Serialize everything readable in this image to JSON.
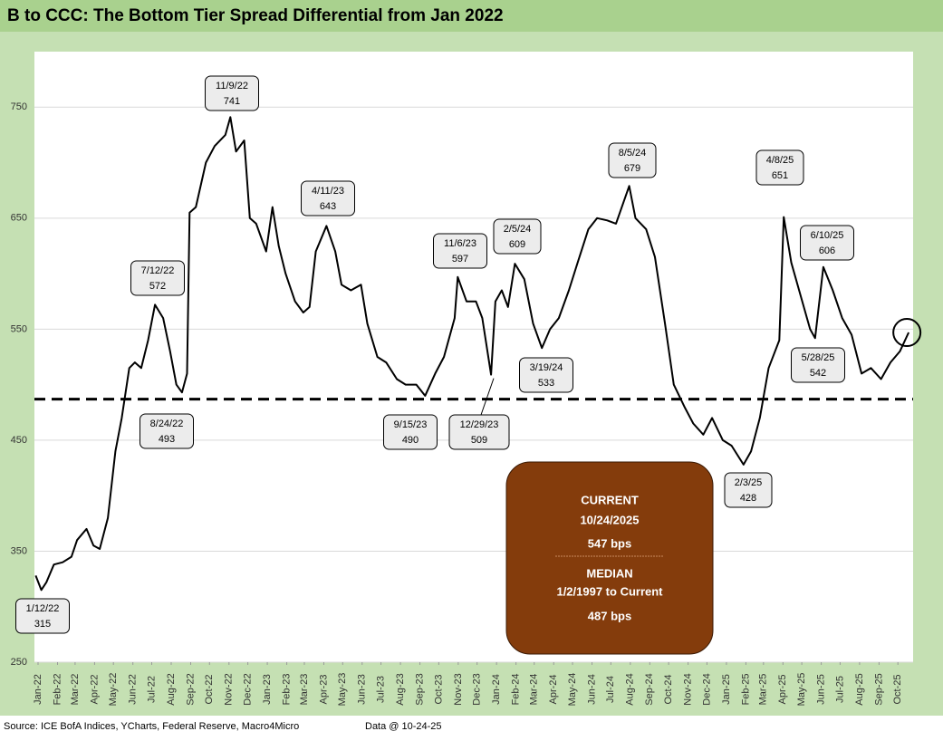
{
  "chart_data": {
    "type": "line",
    "title": "B to CCC: The Bottom Tier Spread Differential from Jan 2022",
    "source": "Source: ICE BofA Indices, YCharts, Federal Reserve, Macro4Micro",
    "data_note": "Data @ 10-24-25",
    "color": "#000000",
    "grid": true,
    "ylim": [
      250,
      800
    ],
    "yticks": [
      250,
      350,
      450,
      550,
      650,
      750
    ],
    "xlim": [
      "2022-01-01",
      "2025-10-31"
    ],
    "xticks": [
      {
        "value": "2022-01-01",
        "label": "Jan-22"
      },
      {
        "value": "2022-02-01",
        "label": "Feb-22"
      },
      {
        "value": "2022-03-01",
        "label": "Mar-22"
      },
      {
        "value": "2022-04-01",
        "label": "Apr-22"
      },
      {
        "value": "2022-05-01",
        "label": "May-22"
      },
      {
        "value": "2022-06-01",
        "label": "Jun-22"
      },
      {
        "value": "2022-07-01",
        "label": "Jul-22"
      },
      {
        "value": "2022-08-01",
        "label": "Aug-22"
      },
      {
        "value": "2022-09-01",
        "label": "Sep-22"
      },
      {
        "value": "2022-10-01",
        "label": "Oct-22"
      },
      {
        "value": "2022-11-01",
        "label": "Nov-22"
      },
      {
        "value": "2022-12-01",
        "label": "Dec-22"
      },
      {
        "value": "2023-01-01",
        "label": "Jan-23"
      },
      {
        "value": "2023-02-01",
        "label": "Feb-23"
      },
      {
        "value": "2023-03-01",
        "label": "Mar-23"
      },
      {
        "value": "2023-04-01",
        "label": "Apr-23"
      },
      {
        "value": "2023-05-01",
        "label": "May-23"
      },
      {
        "value": "2023-06-01",
        "label": "Jun-23"
      },
      {
        "value": "2023-07-01",
        "label": "Jul-23"
      },
      {
        "value": "2023-08-01",
        "label": "Aug-23"
      },
      {
        "value": "2023-09-01",
        "label": "Sep-23"
      },
      {
        "value": "2023-10-01",
        "label": "Oct-23"
      },
      {
        "value": "2023-11-01",
        "label": "Nov-23"
      },
      {
        "value": "2023-12-01",
        "label": "Dec-23"
      },
      {
        "value": "2024-01-01",
        "label": "Jan-24"
      },
      {
        "value": "2024-02-01",
        "label": "Feb-24"
      },
      {
        "value": "2024-03-01",
        "label": "Mar-24"
      },
      {
        "value": "2024-04-01",
        "label": "Apr-24"
      },
      {
        "value": "2024-05-01",
        "label": "May-24"
      },
      {
        "value": "2024-06-01",
        "label": "Jun-24"
      },
      {
        "value": "2024-07-01",
        "label": "Jul-24"
      },
      {
        "value": "2024-08-01",
        "label": "Aug-24"
      },
      {
        "value": "2024-09-01",
        "label": "Sep-24"
      },
      {
        "value": "2024-10-01",
        "label": "Oct-24"
      },
      {
        "value": "2024-11-01",
        "label": "Nov-24"
      },
      {
        "value": "2024-12-01",
        "label": "Dec-24"
      },
      {
        "value": "2025-01-01",
        "label": "Jan-25"
      },
      {
        "value": "2025-02-01",
        "label": "Feb-25"
      },
      {
        "value": "2025-03-01",
        "label": "Mar-25"
      },
      {
        "value": "2025-04-01",
        "label": "Apr-25"
      },
      {
        "value": "2025-05-01",
        "label": "May-25"
      },
      {
        "value": "2025-06-01",
        "label": "Jun-25"
      },
      {
        "value": "2025-07-01",
        "label": "Jul-25"
      },
      {
        "value": "2025-08-01",
        "label": "Aug-25"
      },
      {
        "value": "2025-09-01",
        "label": "Sep-25"
      },
      {
        "value": "2025-10-01",
        "label": "Oct-25"
      }
    ],
    "x": [
      "2022-01-03",
      "2022-01-12",
      "2022-01-20",
      "2022-02-01",
      "2022-02-15",
      "2022-03-01",
      "2022-03-10",
      "2022-03-25",
      "2022-04-05",
      "2022-04-15",
      "2022-04-28",
      "2022-05-10",
      "2022-05-20",
      "2022-06-01",
      "2022-06-10",
      "2022-06-20",
      "2022-07-01",
      "2022-07-12",
      "2022-07-25",
      "2022-08-05",
      "2022-08-15",
      "2022-08-24",
      "2022-09-01",
      "2022-09-05",
      "2022-09-15",
      "2022-10-01",
      "2022-10-15",
      "2022-11-01",
      "2022-11-09",
      "2022-11-18",
      "2022-12-01",
      "2022-12-10",
      "2022-12-20",
      "2023-01-05",
      "2023-01-15",
      "2023-01-25",
      "2023-02-05",
      "2023-02-20",
      "2023-03-05",
      "2023-03-15",
      "2023-03-25",
      "2023-04-11",
      "2023-04-25",
      "2023-05-05",
      "2023-05-20",
      "2023-06-05",
      "2023-06-15",
      "2023-07-01",
      "2023-07-15",
      "2023-08-01",
      "2023-08-15",
      "2023-09-01",
      "2023-09-15",
      "2023-10-01",
      "2023-10-15",
      "2023-11-01",
      "2023-11-06",
      "2023-11-20",
      "2023-12-05",
      "2023-12-15",
      "2023-12-29",
      "2024-01-05",
      "2024-01-15",
      "2024-01-25",
      "2024-02-05",
      "2024-02-20",
      "2024-03-05",
      "2024-03-19",
      "2024-04-01",
      "2024-04-15",
      "2024-05-01",
      "2024-05-15",
      "2024-06-01",
      "2024-06-15",
      "2024-07-01",
      "2024-07-15",
      "2024-08-05",
      "2024-08-15",
      "2024-09-01",
      "2024-09-15",
      "2024-10-01",
      "2024-10-15",
      "2024-11-01",
      "2024-11-15",
      "2024-12-01",
      "2024-12-15",
      "2025-01-01",
      "2025-01-15",
      "2025-02-03",
      "2025-02-15",
      "2025-03-01",
      "2025-03-15",
      "2025-04-01",
      "2025-04-08",
      "2025-04-20",
      "2025-05-05",
      "2025-05-20",
      "2025-05-28",
      "2025-06-10",
      "2025-06-25",
      "2025-07-10",
      "2025-07-25",
      "2025-08-10",
      "2025-08-25",
      "2025-09-10",
      "2025-09-25",
      "2025-10-10",
      "2025-10-24"
    ],
    "series": [
      {
        "color": "#000000",
        "values": [
          328,
          315,
          322,
          338,
          340,
          345,
          360,
          370,
          355,
          352,
          380,
          440,
          470,
          515,
          520,
          515,
          540,
          572,
          560,
          530,
          500,
          493,
          510,
          655,
          660,
          700,
          715,
          725,
          741,
          710,
          720,
          650,
          645,
          620,
          660,
          625,
          600,
          575,
          565,
          570,
          620,
          643,
          620,
          590,
          585,
          590,
          555,
          525,
          520,
          505,
          500,
          500,
          490,
          510,
          525,
          560,
          597,
          575,
          575,
          560,
          509,
          575,
          585,
          570,
          609,
          595,
          555,
          533,
          550,
          560,
          585,
          610,
          640,
          650,
          648,
          645,
          679,
          650,
          640,
          615,
          555,
          500,
          480,
          465,
          455,
          470,
          450,
          445,
          428,
          440,
          470,
          515,
          540,
          651,
          610,
          580,
          550,
          542,
          606,
          585,
          560,
          545,
          510,
          515,
          505,
          520,
          530,
          547
        ]
      }
    ],
    "annotations": [
      {
        "label": "1/12/22",
        "value": 315
      },
      {
        "label": "7/12/22",
        "value": 572
      },
      {
        "label": "8/24/22",
        "value": 493
      },
      {
        "label": "11/9/22",
        "value": 741
      },
      {
        "label": "4/11/23",
        "value": 643
      },
      {
        "label": "9/15/23",
        "value": 490
      },
      {
        "label": "11/6/23",
        "value": 597
      },
      {
        "label": "12/29/23",
        "value": 509
      },
      {
        "label": "2/5/24",
        "value": 609
      },
      {
        "label": "3/19/24",
        "value": 533
      },
      {
        "label": "8/5/24",
        "value": 679
      },
      {
        "label": "2/3/25",
        "value": 428
      },
      {
        "label": "4/8/25",
        "value": 651
      },
      {
        "label": "6/10/25",
        "value": 606
      },
      {
        "label": "5/28/25",
        "value": 542
      }
    ],
    "current": {
      "heading": "CURRENT",
      "date": "10/24/2025",
      "value": 547,
      "label": "547 bps"
    },
    "median": {
      "heading": "MEDIAN",
      "period": "1/2/1997 to Current",
      "value": 487,
      "label": "487 bps"
    }
  }
}
